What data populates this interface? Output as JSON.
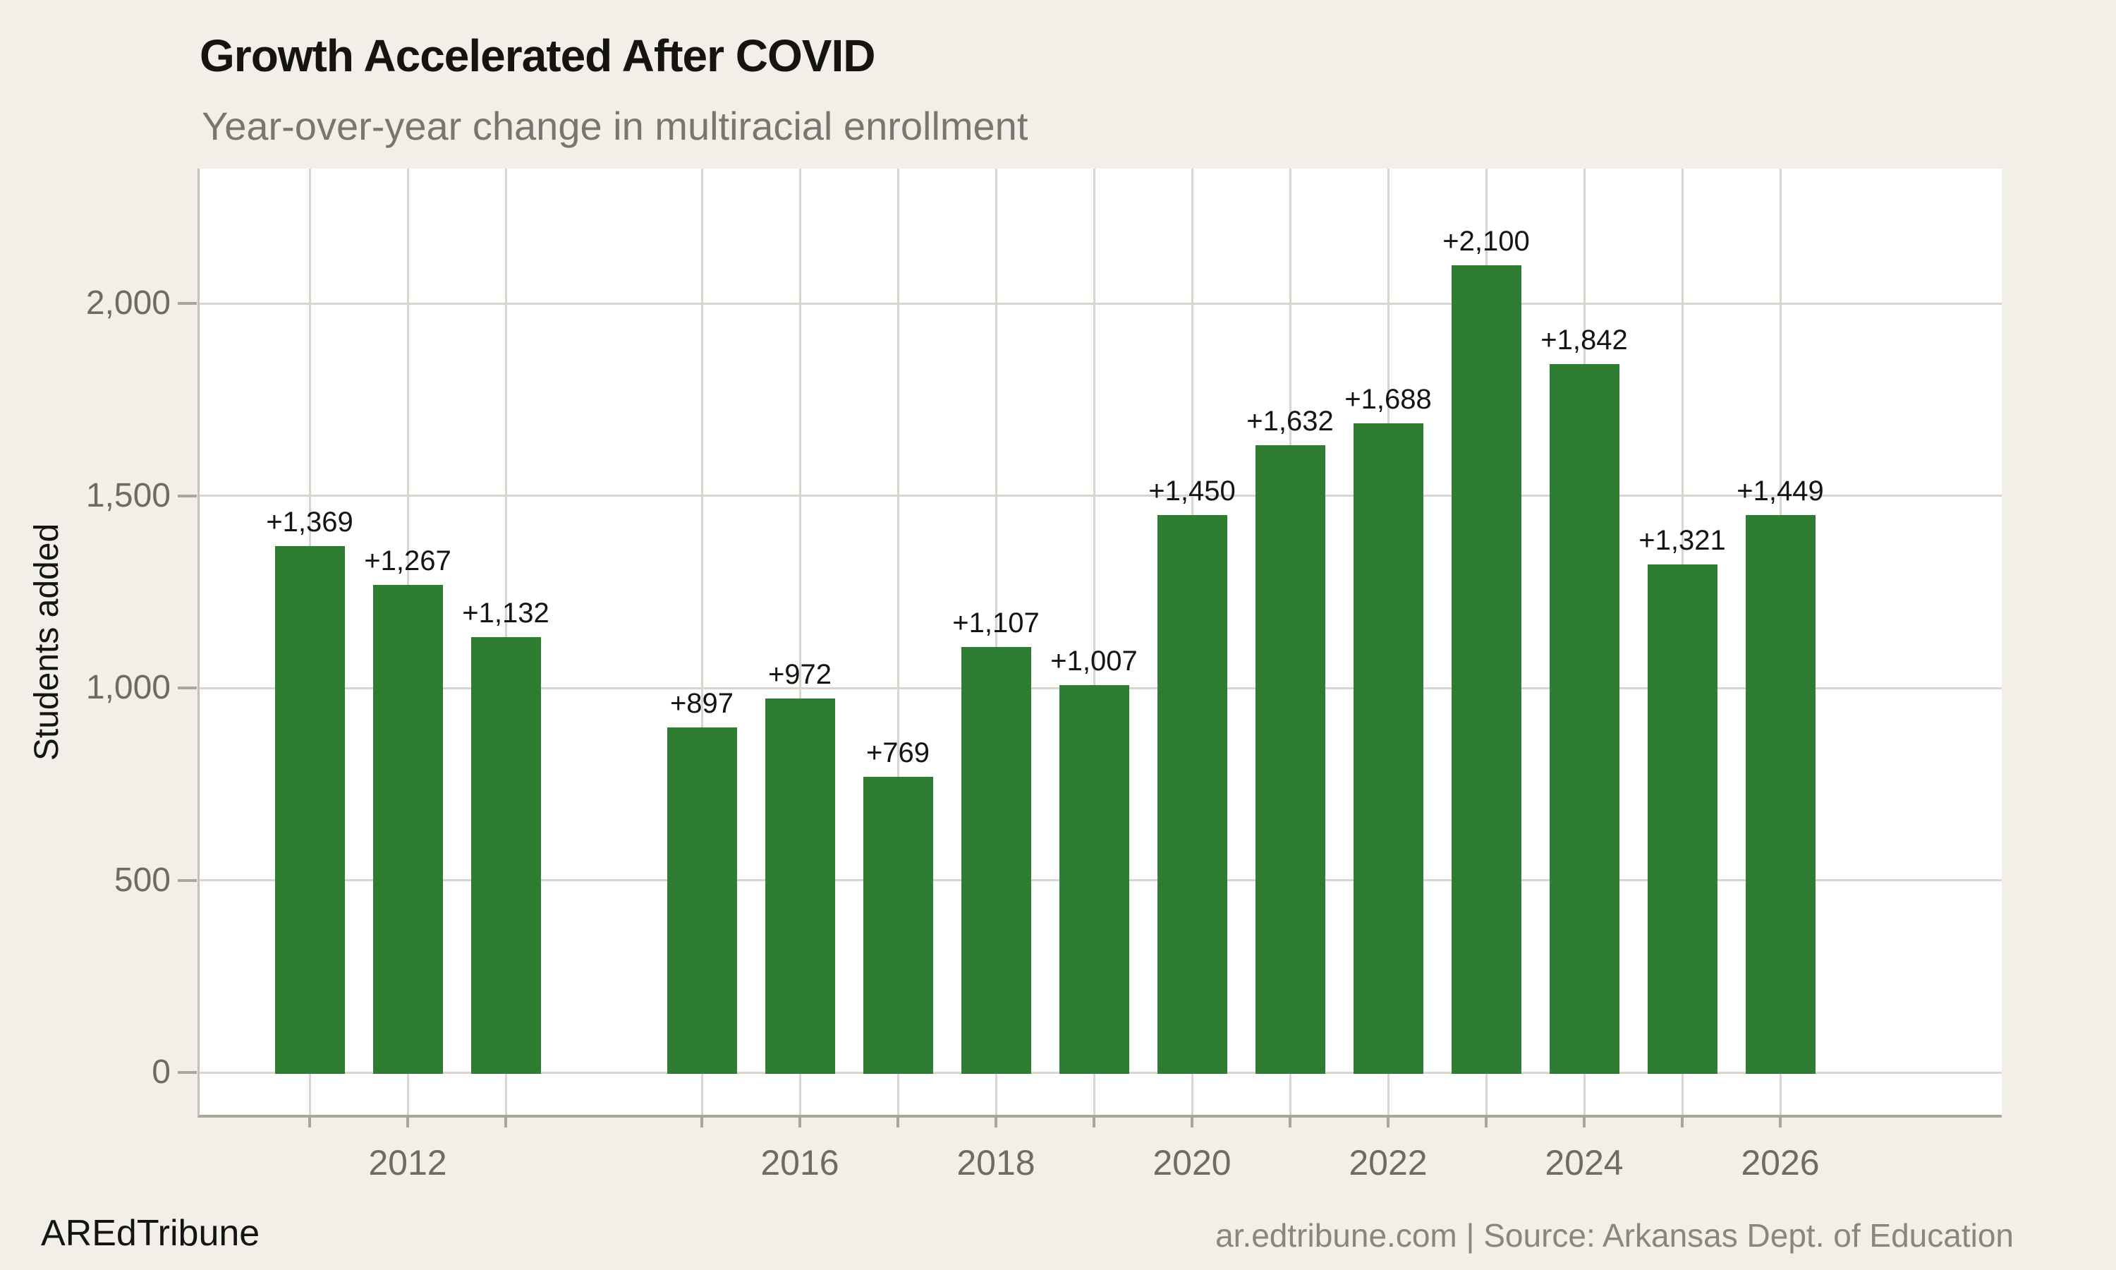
{
  "page": {
    "title": "Growth Accelerated After COVID",
    "subtitle": "Year-over-year change in multiracial enrollment",
    "footer": {
      "brand": "AREdTribune",
      "attribution": "ar.edtribune.com | Source: Arkansas Dept. of Education"
    }
  },
  "chart_data": {
    "type": "bar",
    "title": "Growth Accelerated After COVID",
    "subtitle": "Year-over-year change in multiracial enrollment",
    "ylabel": "Students added",
    "xlabel": "",
    "categories": [
      2011,
      2012,
      2013,
      2015,
      2016,
      2017,
      2018,
      2019,
      2020,
      2021,
      2022,
      2023,
      2024,
      2025,
      2026
    ],
    "values": [
      1369,
      1267,
      1132,
      897,
      972,
      769,
      1107,
      1007,
      1450,
      1632,
      1688,
      2100,
      1842,
      1321,
      1449
    ],
    "bar_labels": [
      "+1,369",
      "+1,267",
      "+1,132",
      "+897",
      "+972",
      "+769",
      "+1,107",
      "+1,007",
      "+1,450",
      "+1,632",
      "+1,688",
      "+2,100",
      "+1,842",
      "+1,321",
      "+1,449"
    ],
    "missing_years": [
      2014
    ],
    "x_axis_ticks": [
      {
        "year": 2012,
        "label": "2012"
      },
      {
        "year": 2016,
        "label": "2016"
      },
      {
        "year": 2018,
        "label": "2018"
      },
      {
        "year": 2020,
        "label": "2020"
      },
      {
        "year": 2022,
        "label": "2022"
      },
      {
        "year": 2024,
        "label": "2024"
      },
      {
        "year": 2026,
        "label": "2026"
      }
    ],
    "y_ticks": [
      {
        "value": 0,
        "label": "0"
      },
      {
        "value": 500,
        "label": "500"
      },
      {
        "value": 1000,
        "label": "1,000"
      },
      {
        "value": 1500,
        "label": "1,500"
      },
      {
        "value": 2000,
        "label": "2,000"
      }
    ],
    "ylim": [
      -115,
      2350
    ],
    "grid": "both",
    "legend_position": "none",
    "colors": {
      "bar": "#2E7D32",
      "background": "#F2EFE9",
      "panel": "#FFFFFF",
      "gridline": "#D9D5CC",
      "axis_line": "#ABA69C",
      "tick_text": "#6E6A64",
      "title_text": "#161412",
      "subtitle_text": "#7A756F",
      "bar_label_text": "#141414",
      "footer_brand_text": "#141414",
      "footer_source_text": "#8A857D"
    }
  }
}
